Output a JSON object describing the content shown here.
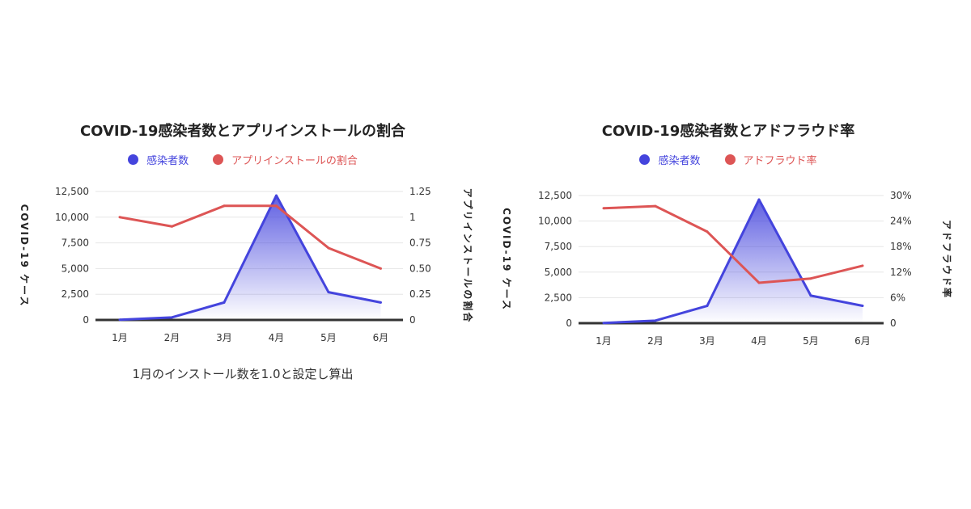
{
  "colors": {
    "infections": "#4444dd",
    "ratio": "#dd5555"
  },
  "chart_data": [
    {
      "type": "line",
      "title": "COVID-19感染者数とアプリインストールの割合",
      "categories": [
        "1月",
        "2月",
        "3月",
        "4月",
        "5月",
        "6月"
      ],
      "series": [
        {
          "name": "感染者数",
          "axis": "left",
          "values": [
            20,
            250,
            1700,
            12100,
            2700,
            1700
          ]
        },
        {
          "name": "アプリインストールの割合",
          "axis": "right",
          "values": [
            1.0,
            0.91,
            1.11,
            1.11,
            0.7,
            0.5
          ]
        }
      ],
      "ylabel_left": "COVID-19 ケース",
      "ylabel_right": "アプリインストールの割合",
      "ylim_left": [
        0,
        12500
      ],
      "ylim_right": [
        0,
        1.25
      ],
      "yticks_left": [
        "0",
        "2,500",
        "5,000",
        "7,500",
        "10,000",
        "12,500"
      ],
      "yticks_right": [
        "0",
        "0.25",
        "0.50",
        "0.75",
        "1",
        "1.25"
      ],
      "grid": true,
      "legend": "top-center",
      "note": "1月のインストール数を1.0と設定し算出"
    },
    {
      "type": "line",
      "title": "COVID-19感染者数とアドフラウド率",
      "categories": [
        "1月",
        "2月",
        "3月",
        "4月",
        "5月",
        "6月"
      ],
      "series": [
        {
          "name": "感染者数",
          "axis": "left",
          "values": [
            20,
            250,
            1700,
            12100,
            2700,
            1700
          ]
        },
        {
          "name": "アドフラウド率",
          "axis": "right",
          "values": [
            27,
            27.5,
            21.5,
            9.5,
            10.5,
            13.5
          ]
        }
      ],
      "ylabel_left": "COVID-19 ケース",
      "ylabel_right": "アドフラウド率",
      "ylim_left": [
        0,
        12500
      ],
      "ylim_right": [
        0,
        30
      ],
      "yticks_left": [
        "0",
        "2,500",
        "5,000",
        "7,500",
        "10,000",
        "12,500"
      ],
      "yticks_right": [
        "0",
        "6%",
        "12%",
        "18%",
        "24%",
        "30%"
      ],
      "grid": true,
      "legend": "top-center"
    }
  ]
}
